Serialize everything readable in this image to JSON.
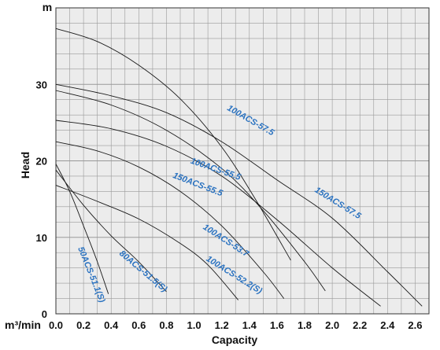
{
  "chart_data": {
    "type": "line",
    "xlabel": "Capacity",
    "x_unit": "m³/min",
    "ylabel": "Head",
    "y_unit": "m",
    "xlim": [
      0,
      2.7
    ],
    "ylim": [
      0,
      40
    ],
    "x_ticks": [
      "0.0",
      "0.2",
      "0.4",
      "0.6",
      "0.8",
      "1.0",
      "1.2",
      "1.4",
      "1.6",
      "1.8",
      "2.0",
      "2.2",
      "2.4",
      "2.6"
    ],
    "y_ticks": [
      "0",
      "10",
      "20",
      "30"
    ],
    "grid": true,
    "series": [
      {
        "name": "100ACS-57.5",
        "x": [
          0,
          0.3,
          0.6,
          0.9,
          1.2,
          1.45,
          1.7
        ],
        "y": [
          37.3,
          35.6,
          32.5,
          28.1,
          21.8,
          14.8,
          7
        ]
      },
      {
        "name": "150ACS-57.5",
        "x": [
          0,
          0.4,
          0.8,
          1.2,
          1.6,
          2.0,
          2.4,
          2.65
        ],
        "y": [
          30,
          28.5,
          26.3,
          22.5,
          17.5,
          12.5,
          5.5,
          1
        ]
      },
      {
        "name": "100ACS-55.5",
        "x": [
          0,
          0.4,
          0.8,
          1.2,
          1.5,
          1.8,
          1.95
        ],
        "y": [
          29.2,
          27.3,
          24,
          19,
          13.5,
          6.8,
          3
        ]
      },
      {
        "name": "150ACS-55.5",
        "x": [
          0,
          0.4,
          0.8,
          1.2,
          1.6,
          2.0,
          2.35
        ],
        "y": [
          25.3,
          24.2,
          21.9,
          18,
          12.3,
          6,
          1
        ]
      },
      {
        "name": "100ACS-53.7",
        "x": [
          0,
          0.3,
          0.6,
          0.9,
          1.2,
          1.5,
          1.65
        ],
        "y": [
          22.5,
          21.3,
          19.2,
          16,
          11.5,
          5.5,
          2
        ]
      },
      {
        "name": "100ACS-52.2(S)",
        "x": [
          0,
          0.3,
          0.6,
          0.9,
          1.1,
          1.32
        ],
        "y": [
          16.8,
          14.7,
          12.4,
          9.2,
          6.4,
          1.8
        ]
      },
      {
        "name": "80ACS-51.5(S)",
        "x": [
          0,
          0.2,
          0.4,
          0.6,
          0.8
        ],
        "y": [
          18.8,
          14.2,
          10.2,
          6.8,
          2.9
        ]
      },
      {
        "name": "50ACS-51.1(S)",
        "x": [
          0,
          0.1,
          0.2,
          0.3,
          0.38
        ],
        "y": [
          19.6,
          16,
          11.5,
          6.8,
          2.6
        ]
      }
    ],
    "labels": [
      {
        "text": "100ACS-57.5",
        "x": 1.4,
        "y": 25,
        "angle": 30
      },
      {
        "text": "150ACS-57.5",
        "x": 2.03,
        "y": 14.2,
        "angle": 32
      },
      {
        "text": "100ACS-55.5",
        "x": 1.15,
        "y": 18.6,
        "angle": 19
      },
      {
        "text": "150ACS-55.5",
        "x": 1.02,
        "y": 16.6,
        "angle": 21
      },
      {
        "text": "100ACS-53.7",
        "x": 1.22,
        "y": 9.3,
        "angle": 33
      },
      {
        "text": "100ACS-52.2(S)",
        "x": 1.28,
        "y": 4.8,
        "angle": 32
      },
      {
        "text": "80ACS-51.5(S)",
        "x": 0.62,
        "y": 5.3,
        "angle": 40
      },
      {
        "text": "50ACS-51.1(S)",
        "x": 0.24,
        "y": 5,
        "angle": 68
      }
    ],
    "colors": {
      "grid": "#999999",
      "curve": "#1a1a1a",
      "label": "#2a72c0",
      "plot_bg": "#ececec"
    }
  }
}
